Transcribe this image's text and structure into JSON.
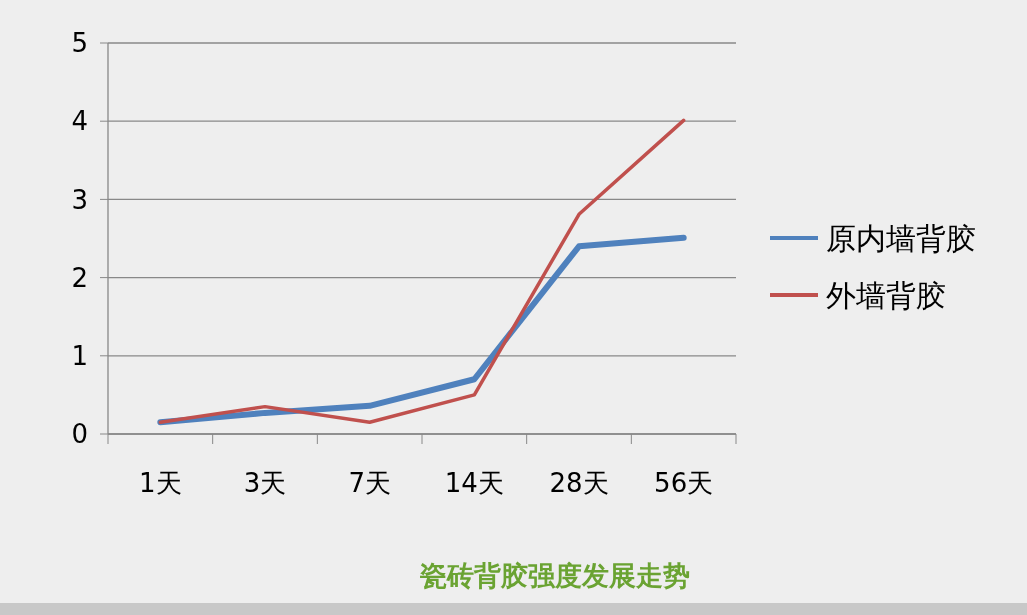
{
  "chart_data": {
    "type": "line",
    "title": "瓷砖背胶强度发展走势",
    "categories": [
      "1天",
      "3天",
      "7天",
      "14天",
      "28天",
      "56天"
    ],
    "series": [
      {
        "name": "原内墙背胶",
        "color": "#4f81bd",
        "values": [
          0.15,
          0.27,
          0.36,
          0.7,
          2.4,
          2.51
        ]
      },
      {
        "name": "外墙背胶",
        "color": "#c0504d",
        "values": [
          0.15,
          0.35,
          0.15,
          0.5,
          2.81,
          4.01
        ]
      }
    ],
    "ylim": [
      0,
      5
    ],
    "yticks": [
      0,
      1,
      2,
      3,
      4,
      5
    ],
    "grid": "y",
    "legend": "right",
    "marker": "none",
    "line_style": "solid"
  }
}
